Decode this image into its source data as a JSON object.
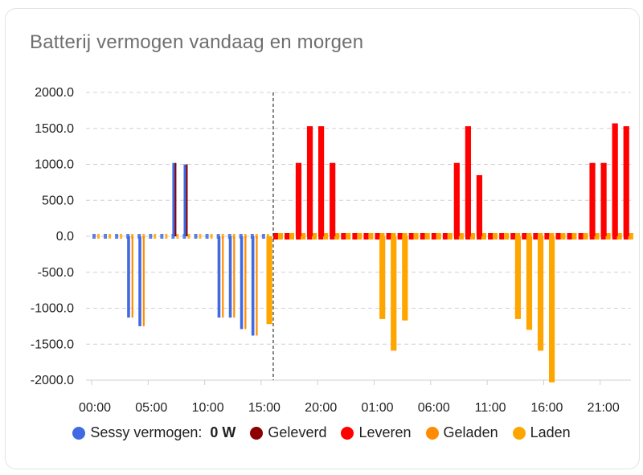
{
  "card": {
    "title": "Batterij vermogen vandaag en morgen"
  },
  "legend": {
    "items": [
      {
        "label": "Sessy vermogen:",
        "value": "0 W",
        "color": "#4169e1"
      },
      {
        "label": "Geleverd",
        "value": "",
        "color": "#8b0000"
      },
      {
        "label": "Leveren",
        "value": "",
        "color": "#ff0000"
      },
      {
        "label": "Geladen",
        "value": "",
        "color": "#ff8c00"
      },
      {
        "label": "Laden",
        "value": "",
        "color": "#ffa500"
      }
    ]
  },
  "chart_data": {
    "type": "bar",
    "ylim": [
      -2000,
      2000
    ],
    "y_ticks": [
      "2000.0",
      "1500.0",
      "1000.0",
      "500.0",
      "0.0",
      "-500.0",
      "-1000.0",
      "-1500.0",
      "-2000.0"
    ],
    "x_tick_labels": [
      "00:00",
      "05:00",
      "10:00",
      "15:00",
      "20:00",
      "01:00",
      "06:00",
      "11:00",
      "16:00",
      "21:00"
    ],
    "x_tick_hour_index": [
      0,
      5,
      10,
      15,
      20,
      25,
      30,
      35,
      40,
      45
    ],
    "now_marker_hour_index": 16,
    "grid": true,
    "legend_position": "bottom",
    "series": [
      {
        "name": "Sessy vermogen",
        "color": "#4169e1",
        "values": [
          0,
          0,
          0,
          -1130,
          -1250,
          0,
          0,
          1020,
          1000,
          0,
          0,
          -1130,
          -1130,
          -1290,
          -1380,
          0
        ]
      },
      {
        "name": "Geleverd",
        "color": "#8b0000",
        "values": [
          0,
          0,
          0,
          0,
          0,
          0,
          0,
          1020,
          1000,
          0,
          0,
          0,
          0,
          0,
          0,
          0
        ]
      },
      {
        "name": "Leveren",
        "color": "#ff0000",
        "values": [
          0,
          0,
          0,
          0,
          0,
          0,
          0,
          0,
          0,
          0,
          0,
          0,
          0,
          0,
          0,
          0,
          0,
          0,
          1020,
          1530,
          1530,
          1020,
          0,
          0,
          0,
          0,
          0,
          0,
          0,
          0,
          0,
          0,
          1020,
          1530,
          850,
          0,
          0,
          0,
          0,
          0,
          0,
          0,
          0,
          0,
          1020,
          1020,
          1570,
          1530
        ]
      },
      {
        "name": "Geladen",
        "color": "#ff8c00",
        "values": [
          0,
          0,
          0,
          -1130,
          -1250,
          0,
          0,
          0,
          0,
          0,
          0,
          -1130,
          -1130,
          -1290,
          -1380,
          0
        ]
      },
      {
        "name": "Laden",
        "color": "#ffa500",
        "values": [
          0,
          0,
          0,
          0,
          0,
          0,
          0,
          0,
          0,
          0,
          0,
          0,
          0,
          0,
          0,
          -1220,
          0,
          0,
          0,
          0,
          0,
          0,
          0,
          0,
          0,
          -1150,
          -1590,
          -1170,
          0,
          0,
          0,
          0,
          0,
          0,
          0,
          0,
          0,
          -1150,
          -1300,
          -1590,
          -2030,
          0,
          0,
          0,
          0,
          0,
          0,
          0
        ]
      }
    ]
  }
}
